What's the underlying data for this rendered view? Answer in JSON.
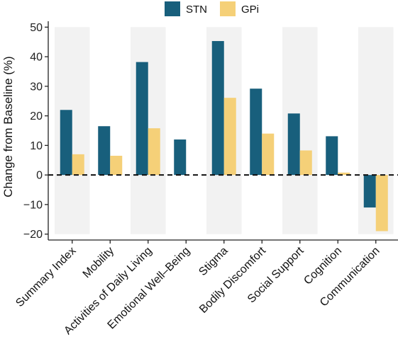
{
  "chart_data": {
    "type": "bar",
    "ylabel": "Change from Baseline (%)",
    "xlabel": "",
    "ylim": [
      -22,
      52
    ],
    "yticks": [
      -20,
      -10,
      0,
      10,
      20,
      30,
      40,
      50
    ],
    "ytick_labels": [
      "−20",
      "−10",
      "0",
      "10",
      "20",
      "30",
      "40",
      "50"
    ],
    "categories": [
      "Summary Index",
      "Mobility",
      "Activities of Daily Living",
      "Emotional Well–Being",
      "Stigma",
      "Bodily Discomfort",
      "Social Support",
      "Cognition",
      "Communication"
    ],
    "series": [
      {
        "name": "STN",
        "color": "#185f7c",
        "values": [
          22,
          16.5,
          38.2,
          12,
          45.3,
          29.2,
          20.8,
          13.1,
          -11
        ]
      },
      {
        "name": "GPi",
        "color": "#f5d078",
        "values": [
          7,
          6.5,
          15.8,
          0,
          26.1,
          14,
          8.3,
          0.8,
          -19
        ]
      }
    ],
    "shaded_band_range": [
      -20,
      50
    ],
    "shaded_categories": [
      0,
      2,
      4,
      6,
      8
    ],
    "shade_color": "#f2f2f2",
    "legend_position": "top",
    "reference_line": {
      "y": 0,
      "style": "dashed"
    }
  }
}
